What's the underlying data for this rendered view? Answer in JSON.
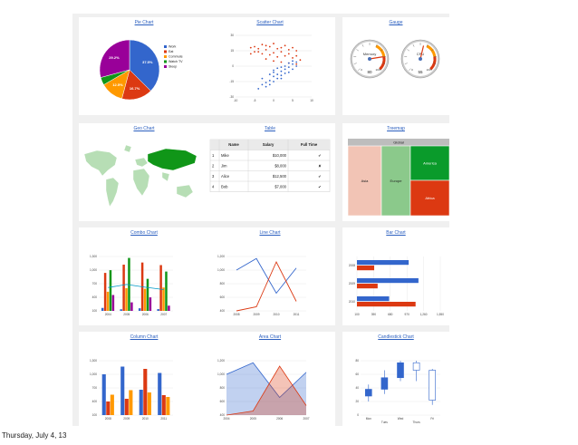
{
  "footer": {
    "date": "Thursday, July 4, 13"
  },
  "titles": {
    "pie": "Pie Chart",
    "scatter": "Scatter Chart",
    "gauge": "Gauge",
    "geo": "Geo Chart",
    "table": "Table",
    "treemap": "Treemap",
    "combo": "Combo Chart",
    "line": "Line Chart",
    "bar": "Bar Chart",
    "column": "Column Chart",
    "area": "Area Chart",
    "candlestick": "Candlestick Chart"
  },
  "chart_data": [
    {
      "type": "pie",
      "title": "Pie Chart",
      "legend_position": "right",
      "slices": [
        {
          "label": "Work",
          "value": 37.5,
          "display": "37.5%",
          "color": "#3366cc"
        },
        {
          "label": "Eat",
          "value": 16.7,
          "display": "16.7%",
          "color": "#dc3912"
        },
        {
          "label": "Commute",
          "value": 12.5,
          "display": "12.5%",
          "color": "#ff9900"
        },
        {
          "label": "Watch TV",
          "value": 4.2,
          "display": "",
          "color": "#109618"
        },
        {
          "label": "Sleep",
          "value": 29.2,
          "display": "29.2%",
          "color": "#990099"
        }
      ]
    },
    {
      "type": "scatter",
      "title": "Scatter Chart",
      "xlim": [
        -10,
        10
      ],
      "ylim": [
        -30,
        30
      ],
      "x_ticks": [
        "-10",
        "-5",
        "0",
        "5",
        "10"
      ],
      "y_ticks": [
        "30",
        "15",
        "0",
        "-15",
        "-30"
      ],
      "series": [
        {
          "color": "#dc3912",
          "points": [
            [
              -6,
              18
            ],
            [
              -5,
              19
            ],
            [
              -4,
              17
            ],
            [
              -3,
              21
            ],
            [
              -2,
              16
            ],
            [
              -1,
              19
            ],
            [
              0,
              22
            ],
            [
              1,
              17
            ],
            [
              2,
              18
            ],
            [
              3,
              20
            ],
            [
              4,
              16
            ],
            [
              5,
              18
            ],
            [
              6,
              15
            ],
            [
              -4,
              14
            ],
            [
              -2,
              20
            ],
            [
              0,
              13
            ],
            [
              2,
              14
            ],
            [
              4,
              12
            ],
            [
              6,
              10
            ],
            [
              7,
              6
            ],
            [
              5,
              8
            ],
            [
              3,
              10
            ],
            [
              1,
              9
            ],
            [
              -1,
              11
            ],
            [
              -3,
              12
            ],
            [
              -5,
              14
            ],
            [
              -6,
              12
            ],
            [
              -2,
              7
            ],
            [
              0,
              5
            ],
            [
              2,
              4
            ],
            [
              4,
              3
            ],
            [
              6,
              2
            ]
          ]
        },
        {
          "color": "#3366cc",
          "points": [
            [
              -4,
              -22
            ],
            [
              -3,
              -18
            ],
            [
              -2,
              -16
            ],
            [
              -1,
              -14
            ],
            [
              0,
              -10
            ],
            [
              1,
              -8
            ],
            [
              2,
              -5
            ],
            [
              3,
              -3
            ],
            [
              4,
              -1
            ],
            [
              5,
              2
            ],
            [
              -2,
              -20
            ],
            [
              0,
              -15
            ],
            [
              2,
              -12
            ],
            [
              1,
              -2
            ],
            [
              3,
              0
            ],
            [
              4,
              -6
            ],
            [
              -1,
              -8
            ],
            [
              0,
              -4
            ],
            [
              2,
              -1
            ],
            [
              5,
              -3
            ],
            [
              6,
              0
            ],
            [
              -3,
              -12
            ],
            [
              -1,
              -18
            ],
            [
              1,
              -12
            ],
            [
              3,
              -7
            ],
            [
              2,
              -9
            ],
            [
              0,
              -6
            ],
            [
              4,
              3
            ],
            [
              5,
              5
            ],
            [
              6,
              4
            ]
          ]
        }
      ]
    },
    {
      "type": "gauge",
      "title": "Gauge",
      "gauges": [
        {
          "label": "Memory",
          "value": 80,
          "min": 0,
          "max": 100,
          "ticks": [
            "0",
            "100"
          ],
          "readout": "80"
        },
        {
          "label": "CPU",
          "value": 55,
          "min": 0,
          "max": 100,
          "ticks": [
            "0",
            "100"
          ],
          "readout": "55"
        }
      ]
    },
    {
      "type": "table",
      "title": "Table",
      "columns": [
        "",
        "Name",
        "Salary",
        "Full Time"
      ],
      "rows": [
        [
          "1",
          "Mike",
          "$10,000",
          "✔"
        ],
        [
          "2",
          "Jim",
          "$8,000",
          "✘"
        ],
        [
          "3",
          "Alice",
          "$12,500",
          "✔"
        ],
        [
          "4",
          "Bob",
          "$7,000",
          "✔"
        ]
      ]
    },
    {
      "type": "treemap",
      "title": "Treemap",
      "root": "Global",
      "nodes": [
        {
          "label": "Asia",
          "color": "#f2c4b5"
        },
        {
          "label": "Europe",
          "color": "#8bc98b"
        },
        {
          "label": "America",
          "color": "#0a9b2b"
        },
        {
          "label": "Africa",
          "color": "#dc3912"
        }
      ]
    },
    {
      "type": "bar",
      "title": "Combo Chart",
      "categories": [
        "2004",
        "2005",
        "2006",
        "2007"
      ],
      "ylim": [
        100,
        1300
      ],
      "y_ticks": [
        "1,300",
        "1,000",
        "700",
        "400",
        "100"
      ],
      "series": [
        {
          "color": "#3366cc",
          "values": [
            165,
            135,
            157,
            139
          ]
        },
        {
          "color": "#dc3912",
          "values": [
            938,
            1120,
            1167,
            1110
          ]
        },
        {
          "color": "#ff9900",
          "values": [
            522,
            599,
            587,
            615
          ]
        },
        {
          "color": "#109618",
          "values": [
            998,
            1268,
            807,
            968
          ]
        },
        {
          "color": "#990099",
          "values": [
            450,
            288,
            397,
            215
          ]
        }
      ],
      "line": {
        "color": "#0099c6",
        "values": [
          614.6,
          682,
          623,
          569.6
        ]
      }
    },
    {
      "type": "line",
      "title": "Line Chart",
      "categories": [
        "2008",
        "2009",
        "2010",
        "2011"
      ],
      "ylim": [
        400,
        1200
      ],
      "y_ticks": [
        "1,200",
        "1,000",
        "800",
        "600",
        "400"
      ],
      "series": [
        {
          "color": "#3366cc",
          "values": [
            1000,
            1170,
            660,
            1030
          ]
        },
        {
          "color": "#dc3912",
          "values": [
            400,
            460,
            1120,
            540
          ]
        }
      ]
    },
    {
      "type": "bar",
      "orientation": "horizontal",
      "title": "Bar Chart",
      "categories": [
        "2008",
        "2009",
        "2010"
      ],
      "xlim": [
        100,
        1550
      ],
      "x_ticks": [
        "100",
        "390",
        "680",
        "970",
        "1,260",
        "1,550"
      ],
      "series": [
        {
          "color": "#3366cc",
          "values": [
            1000,
            1170,
            660
          ]
        },
        {
          "color": "#dc3912",
          "values": [
            400,
            460,
            1120
          ]
        }
      ]
    },
    {
      "type": "bar",
      "title": "Column Chart",
      "categories": [
        "2008",
        "2009",
        "2010",
        "2011"
      ],
      "ylim": [
        100,
        1300
      ],
      "y_ticks": [
        "1,300",
        "1,000",
        "700",
        "400",
        "100"
      ],
      "series": [
        {
          "color": "#3366cc",
          "values": [
            1000,
            1170,
            660,
            1030
          ]
        },
        {
          "color": "#dc3912",
          "values": [
            400,
            460,
            1120,
            540
          ]
        },
        {
          "color": "#ff9900",
          "values": [
            550,
            650,
            600,
            500
          ]
        }
      ]
    },
    {
      "type": "area",
      "title": "Area Chart",
      "categories": [
        "2004",
        "2005",
        "2006",
        "2007"
      ],
      "ylim": [
        400,
        1200
      ],
      "y_ticks": [
        "1,200",
        "1,000",
        "800",
        "600",
        "400"
      ],
      "series": [
        {
          "color": "#3366cc",
          "values": [
            1000,
            1170,
            660,
            1030
          ]
        },
        {
          "color": "#dc3912",
          "values": [
            400,
            460,
            1120,
            540
          ]
        }
      ]
    },
    {
      "type": "candlestick",
      "title": "Candlestick Chart",
      "categories": [
        "Mon",
        "Tues",
        "Wed",
        "Thurs",
        "Fri"
      ],
      "ylim": [
        0,
        80
      ],
      "y_ticks": [
        "80",
        "60",
        "40",
        "20",
        "0"
      ],
      "candles": [
        {
          "low": 20,
          "open": 28,
          "close": 38,
          "high": 45
        },
        {
          "low": 31,
          "open": 38,
          "close": 55,
          "high": 66
        },
        {
          "low": 50,
          "open": 55,
          "close": 77,
          "high": 80
        },
        {
          "low": 50,
          "open": 77,
          "close": 66,
          "high": 80
        },
        {
          "low": 15,
          "open": 66,
          "close": 22,
          "high": 68
        }
      ]
    }
  ]
}
